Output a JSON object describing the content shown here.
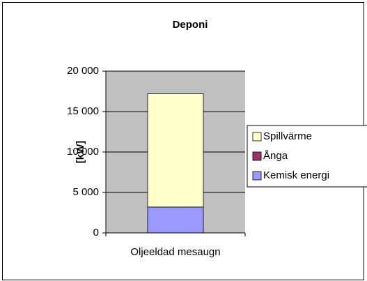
{
  "chart_data": {
    "type": "stacked_bar",
    "title": "Deponi",
    "y_label": "[kW]",
    "categories": [
      "Oljeeldad mesaugn"
    ],
    "series": [
      {
        "name": "Kemisk energi",
        "color": "#9999ff",
        "values": [
          3200
        ]
      },
      {
        "name": "Ånga",
        "color": "#993366",
        "values": [
          0
        ]
      },
      {
        "name": "Spillvärme",
        "color": "#ffffcc",
        "values": [
          14000
        ]
      }
    ],
    "ylim": [
      0,
      20000
    ],
    "yticks": [
      {
        "value": 0,
        "label": "0"
      },
      {
        "value": 5000,
        "label": "5 000"
      },
      {
        "value": 10000,
        "label": "10 000"
      },
      {
        "value": 15000,
        "label": "15 000"
      },
      {
        "value": 20000,
        "label": "20 000"
      }
    ],
    "grid": true,
    "legend": "right"
  }
}
